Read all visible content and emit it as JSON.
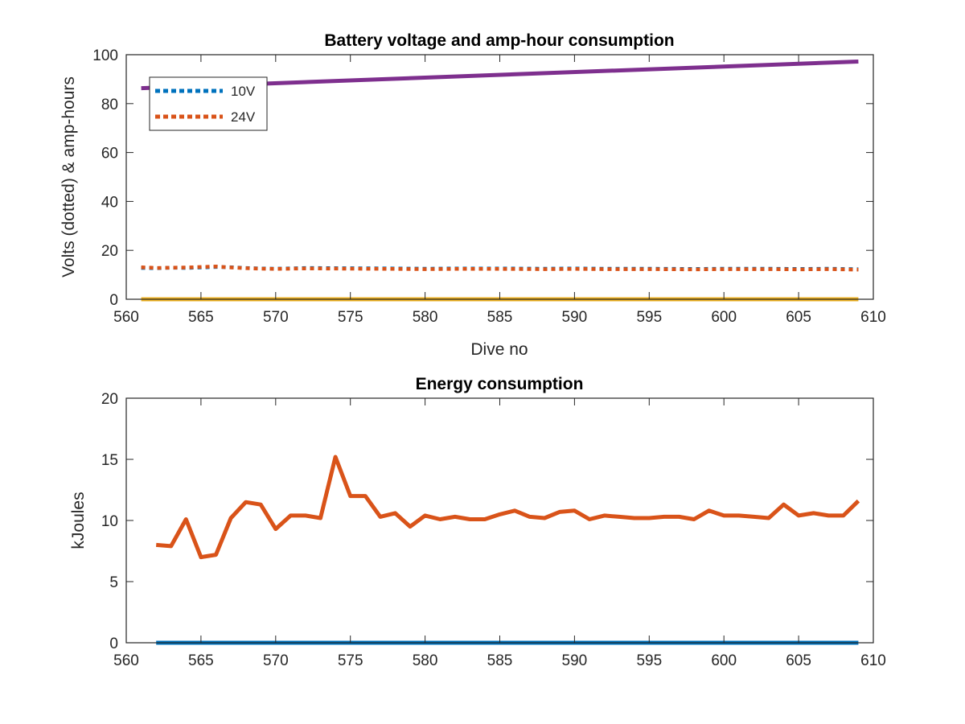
{
  "chart_data": [
    {
      "type": "line",
      "title": "Battery voltage and amp-hour consumption",
      "xlabel": "Dive no",
      "ylabel": "Volts (dotted) & amp-hours",
      "xlim": [
        560,
        610
      ],
      "ylim": [
        0,
        100
      ],
      "xticks": [
        "560",
        "565",
        "570",
        "575",
        "580",
        "585",
        "590",
        "595",
        "600",
        "605",
        "610"
      ],
      "yticks": [
        "0",
        "20",
        "40",
        "60",
        "80",
        "100"
      ],
      "legend_position": "top-left",
      "series": [
        {
          "name": "10V",
          "style": "dotted",
          "color": "#0072bd",
          "x": [
            561,
            562,
            563,
            564,
            565,
            566,
            567,
            568,
            569,
            570,
            572,
            575,
            578,
            580,
            582,
            585,
            588,
            590,
            592,
            595,
            598,
            600,
            603,
            605,
            607,
            609
          ],
          "y": [
            12.8,
            12.7,
            12.9,
            12.8,
            13.0,
            13.2,
            13.1,
            12.8,
            12.6,
            12.5,
            12.8,
            12.7,
            12.6,
            12.5,
            12.6,
            12.6,
            12.5,
            12.6,
            12.5,
            12.5,
            12.4,
            12.5,
            12.5,
            12.4,
            12.5,
            12.3
          ]
        },
        {
          "name": "24V",
          "style": "dotted",
          "color": "#d95319",
          "x": [
            561,
            562,
            563,
            564,
            565,
            566,
            567,
            568,
            569,
            570,
            572,
            575,
            578,
            580,
            582,
            585,
            588,
            590,
            592,
            595,
            598,
            600,
            603,
            605,
            607,
            609
          ],
          "y": [
            13.1,
            12.8,
            12.9,
            13.0,
            13.2,
            13.4,
            13.0,
            12.7,
            12.5,
            12.4,
            12.6,
            12.5,
            12.4,
            12.3,
            12.4,
            12.4,
            12.3,
            12.4,
            12.3,
            12.3,
            12.2,
            12.3,
            12.3,
            12.2,
            12.3,
            12.1
          ]
        },
        {
          "style": "solid",
          "color": "#edb120",
          "x": [
            561,
            609
          ],
          "y": [
            0,
            0
          ]
        },
        {
          "style": "solid",
          "color": "#7e2f8e",
          "x": [
            561,
            609
          ],
          "y": [
            86.3,
            97.2
          ]
        }
      ]
    },
    {
      "type": "line",
      "title": "Energy consumption",
      "xlabel": "",
      "ylabel": "kJoules",
      "xlim": [
        560,
        610
      ],
      "ylim": [
        0,
        20
      ],
      "xticks": [
        "560",
        "565",
        "570",
        "575",
        "580",
        "585",
        "590",
        "595",
        "600",
        "605",
        "610"
      ],
      "yticks": [
        "0",
        "5",
        "10",
        "15",
        "20"
      ],
      "series": [
        {
          "style": "solid",
          "color": "#0072bd",
          "x": [
            562,
            609
          ],
          "y": [
            0,
            0
          ]
        },
        {
          "style": "solid",
          "color": "#d95319",
          "x": [
            562,
            563,
            564,
            565,
            566,
            567,
            568,
            569,
            570,
            571,
            572,
            573,
            574,
            575,
            576,
            577,
            578,
            579,
            580,
            581,
            582,
            583,
            584,
            585,
            586,
            587,
            588,
            589,
            590,
            591,
            592,
            593,
            594,
            595,
            596,
            597,
            598,
            599,
            600,
            601,
            602,
            603,
            604,
            605,
            606,
            607,
            608,
            609
          ],
          "y": [
            8.0,
            7.9,
            10.1,
            7.0,
            7.2,
            10.2,
            11.5,
            11.3,
            9.3,
            10.4,
            10.4,
            10.2,
            15.2,
            12.0,
            12.0,
            10.3,
            10.6,
            9.5,
            10.4,
            10.1,
            10.3,
            10.1,
            10.1,
            10.5,
            10.8,
            10.3,
            10.2,
            10.7,
            10.8,
            10.1,
            10.4,
            10.3,
            10.2,
            10.2,
            10.3,
            10.3,
            10.1,
            10.8,
            10.4,
            10.4,
            10.3,
            10.2,
            11.3,
            10.4,
            10.6,
            10.4,
            10.4,
            11.6
          ]
        }
      ]
    }
  ]
}
